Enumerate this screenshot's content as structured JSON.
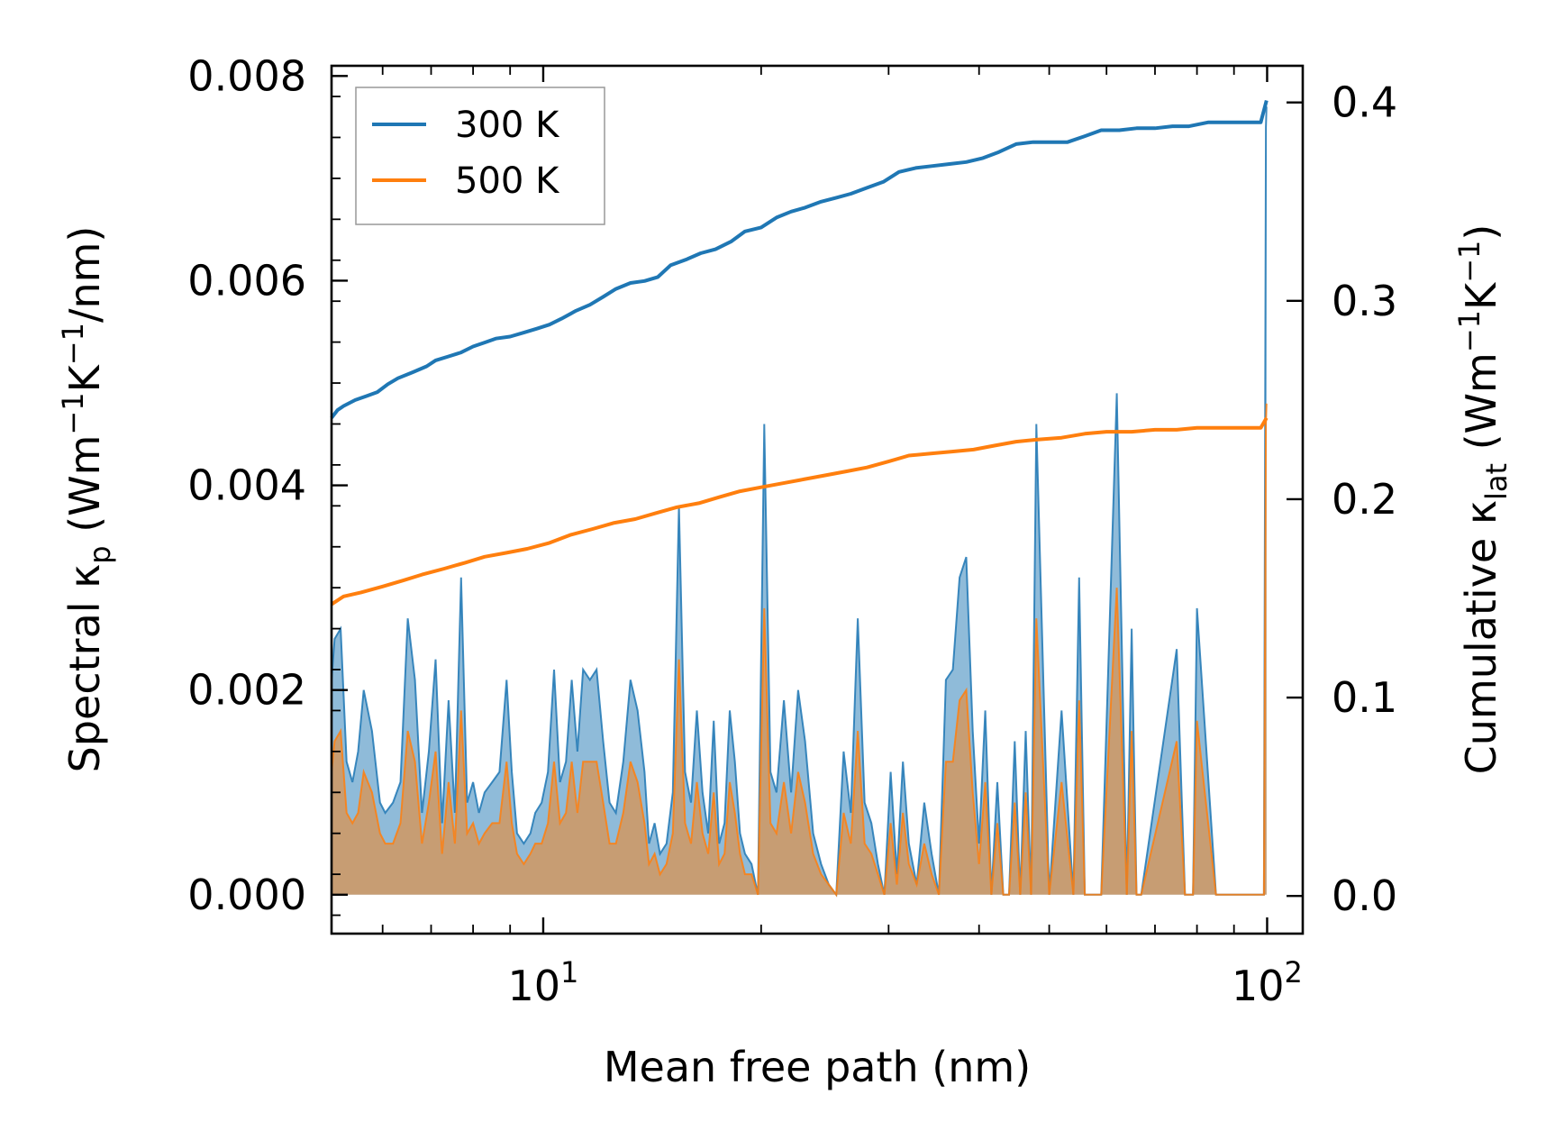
{
  "chart_data": {
    "type": "line",
    "xlabel": "Mean free path (nm)",
    "xscale": "log",
    "xlim": [
      5.1,
      112
    ],
    "x_major_ticks": [
      {
        "value": 10,
        "base": "10",
        "exp": "1"
      },
      {
        "value": 100,
        "base": "10",
        "exp": "2"
      }
    ],
    "left_axis": {
      "label": {
        "pre": "Spectral κ",
        "sub": "p",
        "post": " (Wm",
        "sup1": "−1",
        "mid": "K",
        "sup2": "−1",
        "end": "/nm)"
      },
      "ylim": [
        -0.00038,
        0.0081
      ],
      "ticks": [
        {
          "v": 0.0,
          "t": "0.000"
        },
        {
          "v": 0.002,
          "t": "0.002"
        },
        {
          "v": 0.004,
          "t": "0.004"
        },
        {
          "v": 0.006,
          "t": "0.006"
        },
        {
          "v": 0.008,
          "t": "0.008"
        }
      ]
    },
    "right_axis": {
      "label": {
        "pre": "Cumulative κ",
        "sub": "lat",
        "post": " (Wm",
        "sup1": "−1",
        "mid": "K",
        "sup2": "−1",
        "end": ")"
      },
      "ylim": [
        -0.019,
        0.4185
      ],
      "ticks": [
        {
          "v": 0.0,
          "t": "0.0"
        },
        {
          "v": 0.1,
          "t": "0.1"
        },
        {
          "v": 0.2,
          "t": "0.2"
        },
        {
          "v": 0.3,
          "t": "0.3"
        },
        {
          "v": 0.4,
          "t": "0.4"
        }
      ]
    },
    "legend": {
      "position": "top-left",
      "entries": [
        "300 K",
        "500 K"
      ]
    },
    "colors": {
      "s300": "#1f77b4",
      "s500": "#ff7f0e",
      "fill300": "#1f77b4",
      "fill500": "#ff7f0e"
    },
    "series": [
      {
        "name": "300 K",
        "axis": "right",
        "kind": "cumulative",
        "x": [
          5.1,
          5.2,
          5.3,
          5.5,
          5.7,
          5.9,
          6.1,
          6.3,
          6.6,
          6.9,
          7.1,
          7.4,
          7.7,
          8.0,
          8.3,
          8.6,
          9.0,
          9.4,
          9.8,
          10.2,
          10.6,
          11.1,
          11.6,
          12.1,
          12.6,
          13.2,
          13.8,
          14.4,
          15.0,
          15.8,
          16.5,
          17.3,
          18.2,
          19.0,
          20.0,
          21.0,
          22.0,
          23.0,
          24.2,
          25.4,
          26.6,
          28.0,
          29.5,
          31.0,
          32.7,
          34.5,
          36.4,
          38.4,
          40.5,
          42.6,
          45.0,
          47.5,
          50.0,
          53.0,
          56.0,
          59.0,
          62.5,
          66.0,
          70.0,
          74.0,
          78.0,
          83.0,
          88.0,
          93.0,
          98.0,
          99.8
        ],
        "y": [
          0.241,
          0.245,
          0.247,
          0.25,
          0.252,
          0.254,
          0.258,
          0.261,
          0.264,
          0.267,
          0.27,
          0.272,
          0.274,
          0.277,
          0.279,
          0.281,
          0.282,
          0.284,
          0.286,
          0.288,
          0.291,
          0.295,
          0.298,
          0.302,
          0.306,
          0.309,
          0.31,
          0.312,
          0.318,
          0.321,
          0.324,
          0.326,
          0.33,
          0.335,
          0.337,
          0.342,
          0.345,
          0.347,
          0.35,
          0.352,
          0.354,
          0.357,
          0.36,
          0.365,
          0.367,
          0.368,
          0.369,
          0.37,
          0.372,
          0.375,
          0.379,
          0.38,
          0.38,
          0.38,
          0.383,
          0.386,
          0.386,
          0.387,
          0.387,
          0.388,
          0.388,
          0.39,
          0.39,
          0.39,
          0.39,
          0.401
        ]
      },
      {
        "name": "500 K",
        "axis": "right",
        "kind": "cumulative",
        "x": [
          5.1,
          5.3,
          5.6,
          6.0,
          6.4,
          6.8,
          7.3,
          7.8,
          8.3,
          8.9,
          9.5,
          10.2,
          10.9,
          11.7,
          12.5,
          13.4,
          14.3,
          15.3,
          16.4,
          17.5,
          18.7,
          20.0,
          21.4,
          22.9,
          24.5,
          26.2,
          28.0,
          30.0,
          32.0,
          34.3,
          36.7,
          39.3,
          42.0,
          45.0,
          48.0,
          52.0,
          56.0,
          60.0,
          65.0,
          70.0,
          75.0,
          80.0,
          86.0,
          92.0,
          98.0,
          99.8
        ],
        "y": [
          0.147,
          0.151,
          0.153,
          0.156,
          0.159,
          0.162,
          0.165,
          0.168,
          0.171,
          0.173,
          0.175,
          0.178,
          0.182,
          0.185,
          0.188,
          0.19,
          0.193,
          0.196,
          0.198,
          0.201,
          0.204,
          0.206,
          0.208,
          0.21,
          0.212,
          0.214,
          0.216,
          0.219,
          0.222,
          0.223,
          0.224,
          0.225,
          0.227,
          0.229,
          0.23,
          0.231,
          0.233,
          0.234,
          0.234,
          0.235,
          0.235,
          0.236,
          0.236,
          0.236,
          0.236,
          0.241
        ]
      },
      {
        "name": "300 K spectral",
        "axis": "left",
        "kind": "spectral",
        "x": [
          5.1,
          5.15,
          5.25,
          5.35,
          5.45,
          5.55,
          5.65,
          5.8,
          5.95,
          6.05,
          6.2,
          6.35,
          6.5,
          6.65,
          6.8,
          6.95,
          7.1,
          7.25,
          7.4,
          7.55,
          7.7,
          7.85,
          8.0,
          8.15,
          8.3,
          8.5,
          8.7,
          8.9,
          9.05,
          9.2,
          9.4,
          9.6,
          9.75,
          9.95,
          10.15,
          10.35,
          10.55,
          10.75,
          10.95,
          11.15,
          11.35,
          11.6,
          11.85,
          12.1,
          12.35,
          12.6,
          12.9,
          13.2,
          13.5,
          13.8,
          14.0,
          14.25,
          14.5,
          14.8,
          15.1,
          15.4,
          15.7,
          16.0,
          16.3,
          16.6,
          16.9,
          17.2,
          17.5,
          17.8,
          18.1,
          18.4,
          18.7,
          19.0,
          19.4,
          19.8,
          20.2,
          20.6,
          21.0,
          21.5,
          22.0,
          22.5,
          23.0,
          23.6,
          24.2,
          24.8,
          25.4,
          26.0,
          26.6,
          27.2,
          27.8,
          28.4,
          29.0,
          29.6,
          30.2,
          30.8,
          31.4,
          32.0,
          32.8,
          33.6,
          34.4,
          35.2,
          36.0,
          36.8,
          37.6,
          38.4,
          39.2,
          40.0,
          40.8,
          41.6,
          42.4,
          43.2,
          44.0,
          44.8,
          45.6,
          46.4,
          47.2,
          48.0,
          50.0,
          52.0,
          54.0,
          55.0,
          56.0,
          57.0,
          58.0,
          59.0,
          62.0,
          64.0,
          65.0,
          66.0,
          67.0,
          75.0,
          77.0,
          78.0,
          79.0,
          80.0,
          85.0,
          90.0,
          95.0,
          98.0,
          99.0,
          99.6,
          99.8
        ],
        "y": [
          0.0021,
          0.0025,
          0.0026,
          0.0013,
          0.0011,
          0.0014,
          0.002,
          0.0016,
          0.0009,
          0.0008,
          0.0009,
          0.0011,
          0.0027,
          0.0021,
          0.0008,
          0.0014,
          0.0023,
          0.0007,
          0.0019,
          0.0008,
          0.0031,
          0.0009,
          0.0011,
          0.0008,
          0.001,
          0.0011,
          0.0012,
          0.0021,
          0.0012,
          0.0006,
          0.0005,
          0.0006,
          0.0008,
          0.0009,
          0.0012,
          0.0022,
          0.0011,
          0.0013,
          0.0021,
          0.0014,
          0.0022,
          0.0021,
          0.0022,
          0.0015,
          0.0009,
          0.0008,
          0.0013,
          0.0021,
          0.0018,
          0.0012,
          0.0005,
          0.0007,
          0.0004,
          0.0005,
          0.001,
          0.0038,
          0.0012,
          0.0009,
          0.0018,
          0.001,
          0.0006,
          0.0017,
          0.0005,
          0.0007,
          0.0018,
          0.0013,
          0.0006,
          0.0004,
          0.0003,
          0.0,
          0.0046,
          0.0012,
          0.001,
          0.0019,
          0.001,
          0.002,
          0.0015,
          0.0006,
          0.0003,
          0.0001,
          0.0,
          0.0014,
          0.0008,
          0.0027,
          0.0009,
          0.0007,
          0.0003,
          0.0,
          0.0012,
          0.0002,
          0.0013,
          0.0005,
          0.0001,
          0.0009,
          0.0004,
          0.0,
          0.0021,
          0.0022,
          0.0031,
          0.0033,
          0.0016,
          0.0005,
          0.0018,
          0.0,
          0.0011,
          0.0,
          0.0,
          0.0015,
          0.0,
          0.0016,
          0.0,
          0.0046,
          0.0,
          0.0018,
          0.0,
          0.0031,
          0.0,
          0.0,
          0.0,
          0.0,
          0.0049,
          0.0,
          0.0026,
          0.0,
          0.0,
          0.0024,
          0.0,
          0.0,
          0.0,
          0.0028,
          0.0,
          0.0,
          0.0,
          0.0,
          0.0,
          0.0075,
          0.0077
        ],
        "fill": true
      },
      {
        "name": "500 K spectral",
        "axis": "left",
        "kind": "spectral",
        "x": [
          5.1,
          5.15,
          5.25,
          5.35,
          5.45,
          5.55,
          5.65,
          5.8,
          5.95,
          6.05,
          6.2,
          6.35,
          6.5,
          6.65,
          6.8,
          6.95,
          7.1,
          7.25,
          7.4,
          7.55,
          7.7,
          7.85,
          8.0,
          8.15,
          8.3,
          8.5,
          8.7,
          8.9,
          9.05,
          9.2,
          9.4,
          9.6,
          9.75,
          9.95,
          10.15,
          10.35,
          10.55,
          10.75,
          10.95,
          11.15,
          11.35,
          11.6,
          11.85,
          12.1,
          12.35,
          12.6,
          12.9,
          13.2,
          13.5,
          13.8,
          14.0,
          14.25,
          14.5,
          14.8,
          15.1,
          15.4,
          15.7,
          16.0,
          16.3,
          16.6,
          16.9,
          17.2,
          17.5,
          17.8,
          18.1,
          18.4,
          18.7,
          19.0,
          19.4,
          19.8,
          20.2,
          20.6,
          21.0,
          21.5,
          22.0,
          22.5,
          23.0,
          23.6,
          24.2,
          24.8,
          25.4,
          26.0,
          26.6,
          27.2,
          27.8,
          28.4,
          29.0,
          29.6,
          30.2,
          30.8,
          31.4,
          32.0,
          32.8,
          33.6,
          34.4,
          35.2,
          36.0,
          36.8,
          37.6,
          38.4,
          39.2,
          40.0,
          40.8,
          41.6,
          42.4,
          43.2,
          44.0,
          44.8,
          45.6,
          46.4,
          47.2,
          48.0,
          50.0,
          52.0,
          54.0,
          55.0,
          56.0,
          57.0,
          58.0,
          59.0,
          62.0,
          64.0,
          65.0,
          66.0,
          67.0,
          75.0,
          77.0,
          78.0,
          79.0,
          80.0,
          85.0,
          90.0,
          95.0,
          98.0,
          99.0,
          99.6,
          99.8
        ],
        "y": [
          0.0012,
          0.0015,
          0.0016,
          0.0008,
          0.0007,
          0.0008,
          0.0012,
          0.001,
          0.0006,
          0.0005,
          0.0005,
          0.0007,
          0.0016,
          0.0013,
          0.0005,
          0.0009,
          0.0014,
          0.0004,
          0.0011,
          0.0005,
          0.0018,
          0.0006,
          0.0007,
          0.0005,
          0.0006,
          0.0007,
          0.0007,
          0.0013,
          0.0007,
          0.0004,
          0.0003,
          0.0004,
          0.0005,
          0.0005,
          0.0007,
          0.0013,
          0.0007,
          0.0008,
          0.0013,
          0.0008,
          0.0013,
          0.0013,
          0.0013,
          0.0009,
          0.0005,
          0.0005,
          0.0008,
          0.0013,
          0.0011,
          0.0007,
          0.0003,
          0.0004,
          0.0002,
          0.0003,
          0.0006,
          0.0023,
          0.0007,
          0.0005,
          0.0011,
          0.0006,
          0.0004,
          0.001,
          0.0003,
          0.0004,
          0.0011,
          0.0008,
          0.0004,
          0.0002,
          0.0002,
          0.0,
          0.0028,
          0.0007,
          0.0006,
          0.0011,
          0.0006,
          0.0012,
          0.0009,
          0.0004,
          0.0002,
          0.0001,
          0.0,
          0.0008,
          0.0005,
          0.0016,
          0.0005,
          0.0004,
          0.0002,
          0.0,
          0.0007,
          0.0001,
          0.0008,
          0.0003,
          0.0001,
          0.0005,
          0.0002,
          0.0,
          0.0013,
          0.0013,
          0.0019,
          0.002,
          0.001,
          0.0003,
          0.0011,
          0.0,
          0.0007,
          0.0,
          0.0,
          0.0009,
          0.0,
          0.001,
          0.0,
          0.0027,
          0.0,
          0.0011,
          0.0,
          0.0019,
          0.0,
          0.0,
          0.0,
          0.0,
          0.003,
          0.0,
          0.0016,
          0.0,
          0.0,
          0.0015,
          0.0,
          0.0,
          0.0,
          0.0017,
          0.0,
          0.0,
          0.0,
          0.0,
          0.0,
          0.0046,
          0.0048
        ],
        "fill": true
      }
    ]
  }
}
